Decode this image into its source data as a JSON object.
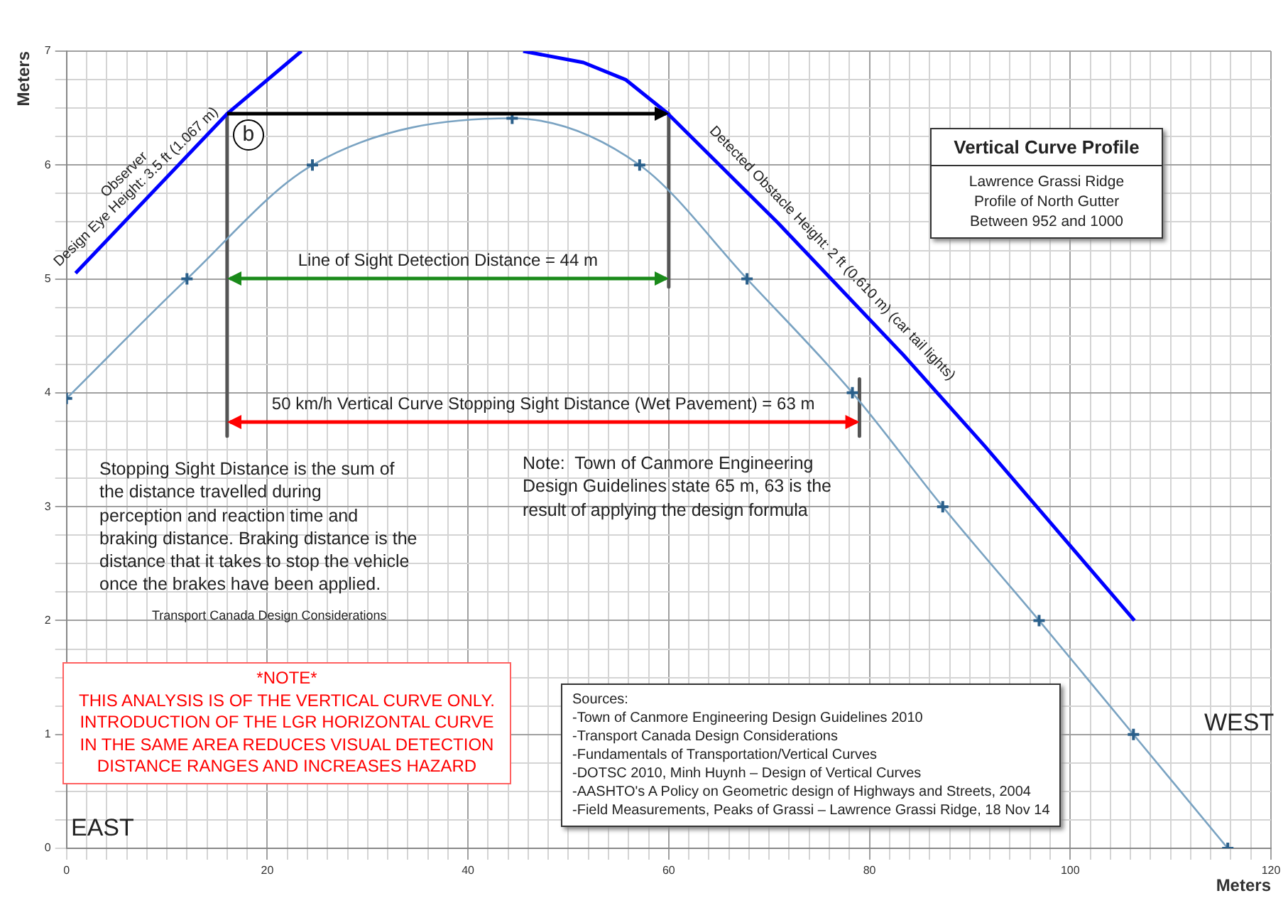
{
  "chart_data": {
    "type": "line",
    "title": "Vertical Curve Profile",
    "subtitle": "Lawrence Grassi Ridge\nProfile of North Gutter\nBetween 952 and 1000",
    "xlabel": "Meters",
    "ylabel": "Meters",
    "xlim": [
      0,
      120
    ],
    "ylim": [
      0,
      7
    ],
    "xticks": [
      0,
      {
        "value": 2,
        "label": null
      },
      {
        "value": 4,
        "label": null
      },
      {
        "value": 6,
        "label": null
      },
      {
        "value": 8,
        "label": null
      },
      {
        "value": 10,
        "label": null
      },
      {
        "value": 12,
        "label": null
      },
      {
        "value": 14,
        "label": null
      },
      {
        "value": 16,
        "label": null
      },
      {
        "value": 18,
        "label": null
      },
      20,
      {
        "value": 22,
        "label": null
      },
      {
        "value": 24,
        "label": null
      },
      {
        "value": 26,
        "label": null
      },
      {
        "value": 28,
        "label": null
      },
      {
        "value": 30,
        "label": null
      },
      {
        "value": 32,
        "label": null
      },
      {
        "value": 34,
        "label": null
      },
      {
        "value": 36,
        "label": null
      },
      {
        "value": 38,
        "label": null
      },
      40,
      {
        "value": 42,
        "label": null
      },
      {
        "value": 44,
        "label": null
      },
      {
        "value": 46,
        "label": null
      },
      {
        "value": 48,
        "label": null
      },
      {
        "value": 50,
        "label": null
      },
      {
        "value": 52,
        "label": null
      },
      {
        "value": 54,
        "label": null
      },
      {
        "value": 56,
        "label": null
      },
      {
        "value": 58,
        "label": null
      },
      60,
      {
        "value": 62,
        "label": null
      },
      {
        "value": 64,
        "label": null
      },
      {
        "value": 66,
        "label": null
      },
      {
        "value": 68,
        "label": null
      },
      {
        "value": 70,
        "label": null
      },
      {
        "value": 72,
        "label": null
      },
      {
        "value": 74,
        "label": null
      },
      {
        "value": 76,
        "label": null
      },
      {
        "value": 78,
        "label": null
      },
      80,
      {
        "value": 82,
        "label": null
      },
      {
        "value": 84,
        "label": null
      },
      {
        "value": 86,
        "label": null
      },
      {
        "value": 88,
        "label": null
      },
      {
        "value": 90,
        "label": null
      },
      {
        "value": 92,
        "label": null
      },
      {
        "value": 94,
        "label": null
      },
      {
        "value": 96,
        "label": null
      },
      {
        "value": 98,
        "label": null
      },
      100,
      {
        "value": 102,
        "label": null
      },
      {
        "value": 104,
        "label": null
      },
      {
        "value": 106,
        "label": null
      },
      {
        "value": 108,
        "label": null
      },
      {
        "value": 110,
        "label": null
      },
      {
        "value": 112,
        "label": null
      },
      {
        "value": 114,
        "label": null
      },
      {
        "value": 116,
        "label": null
      },
      {
        "value": 118,
        "label": null
      },
      120
    ],
    "yticks": [
      0,
      {
        "value": 0.25,
        "label": null
      },
      {
        "value": 0.5,
        "label": null
      },
      {
        "value": 0.75,
        "label": null
      },
      1,
      {
        "value": 1.25,
        "label": null
      },
      {
        "value": 1.5,
        "label": null
      },
      {
        "value": 1.75,
        "label": null
      },
      2,
      {
        "value": 2.25,
        "label": null
      },
      {
        "value": 2.5,
        "label": null
      },
      {
        "value": 2.75,
        "label": null
      },
      3,
      {
        "value": 3.25,
        "label": null
      },
      {
        "value": 3.5,
        "label": null
      },
      {
        "value": 3.75,
        "label": null
      },
      4,
      {
        "value": 4.25,
        "label": null
      },
      {
        "value": 4.5,
        "label": null
      },
      {
        "value": 4.75,
        "label": null
      },
      5,
      {
        "value": 5.25,
        "label": null
      },
      {
        "value": 5.5,
        "label": null
      },
      {
        "value": 5.75,
        "label": null
      },
      6,
      {
        "value": 6.25,
        "label": null
      },
      {
        "value": 6.5,
        "label": null
      },
      {
        "value": 6.75,
        "label": null
      },
      7
    ],
    "grid": true,
    "legend": false,
    "marker": "none",
    "series": [
      {
        "color": "#7aa3c2",
        "marker": "cross",
        "x": [
          0,
          12,
          24.5,
          44.4,
          57.1,
          67.8,
          78.3,
          87.3,
          96.9,
          106.3,
          115.7
        ],
        "values": [
          3.95,
          5.0,
          6.0,
          6.41,
          6.0,
          5.0,
          4.0,
          3.0,
          2.0,
          1.0,
          0
        ]
      },
      {
        "color": "#0000ff",
        "x": [
          0.9,
          16,
          23.4
        ],
        "values": [
          5.05,
          6.45,
          7.0
        ]
      },
      {
        "color": "#0000ff",
        "x": [
          45.5,
          51.5,
          55.7,
          59.8,
          70.9,
          83.4,
          91.5,
          106.4
        ],
        "values": [
          7.0,
          6.9,
          6.75,
          6.46,
          5.49,
          4.33,
          3.53,
          2.0
        ]
      },
      {
        "color": "#555555",
        "x": [
          16,
          16
        ],
        "values": [
          6.45,
          3.62
        ]
      },
      {
        "color": "#555555",
        "x": [
          60,
          60
        ],
        "values": [
          6.45,
          4.93
        ]
      },
      {
        "color": "#555555",
        "x": [
          79,
          79
        ],
        "values": [
          4.12,
          3.62
        ]
      }
    ],
    "annotations": [
      {
        "text": "Observer\nDesign Eye Height: 3.5 ft (1.067 m)",
        "x": 8,
        "y": 5.71
      },
      {
        "text": "b",
        "x": 16,
        "y": 6.45
      },
      {
        "text": "Detected Obstacle Height: 2 ft (0.610 m) (car tail lights)",
        "x": 75,
        "y": 5.11
      },
      "Line of Sight Detection Distance = 44 m",
      "50 km/h Vertical Curve Stopping Sight Distance (Wet Pavement) = 63 m",
      "Stopping Sight Distance is the sum of\nthe distance travelled during\nperception and reaction time and\nbraking distance. Braking distance is the\ndistance that it takes to stop the vehicle\nonce the brakes have been applied.",
      "Transport Canada Design Considerations",
      "Note:  Town of Canmore Engineering\nDesign Guidelines state 65 m, 63 is the\nresult of applying the design formula",
      "*NOTE*\nTHIS ANALYSIS IS OF THE VERTICAL CURVE ONLY.\nINTRODUCTION OF THE LGR HORIZONTAL CURVE\nIN THE SAME AREA REDUCES VISUAL DETECTION\nDISTANCE RANGES AND INCREASES HAZARD",
      "Sources:\n-Town of Canmore Engineering Design Guidelines 2010\n-Transport Canada Design Considerations\n-Fundamentals of Transportation/Vertical Curves\n-DOTSC 2010, Minh Huynh – Design of Vertical Curves\n-AASHTO's A Policy on Geometric design of Highways and Streets, 2004\n-Field Measurements, Peaks of Grassi – Lawrence Grassi Ridge, 18 Nov 14",
      "EAST",
      "WEST"
    ]
  }
}
